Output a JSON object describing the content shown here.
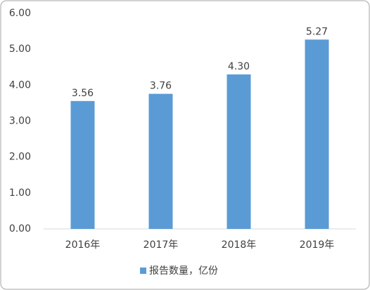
{
  "chart_data": {
    "type": "bar",
    "categories": [
      "2016年",
      "2017年",
      "2018年",
      "2019年"
    ],
    "series": [
      {
        "name": "报告数量，亿份",
        "color": "#5b9bd5",
        "values": [
          3.56,
          3.76,
          4.3,
          5.27
        ],
        "value_labels": [
          "3.56",
          "3.76",
          "4.30",
          "5.27"
        ]
      }
    ],
    "ylim": [
      0,
      6
    ],
    "yticks": [
      {
        "value": 0,
        "label": "0.00"
      },
      {
        "value": 1,
        "label": "1.00"
      },
      {
        "value": 2,
        "label": "2.00"
      },
      {
        "value": 3,
        "label": "3.00"
      },
      {
        "value": 4,
        "label": "4.00"
      },
      {
        "value": 5,
        "label": "5.00"
      },
      {
        "value": 6,
        "label": "6.00"
      }
    ],
    "grid": false,
    "legend": "bottom"
  }
}
